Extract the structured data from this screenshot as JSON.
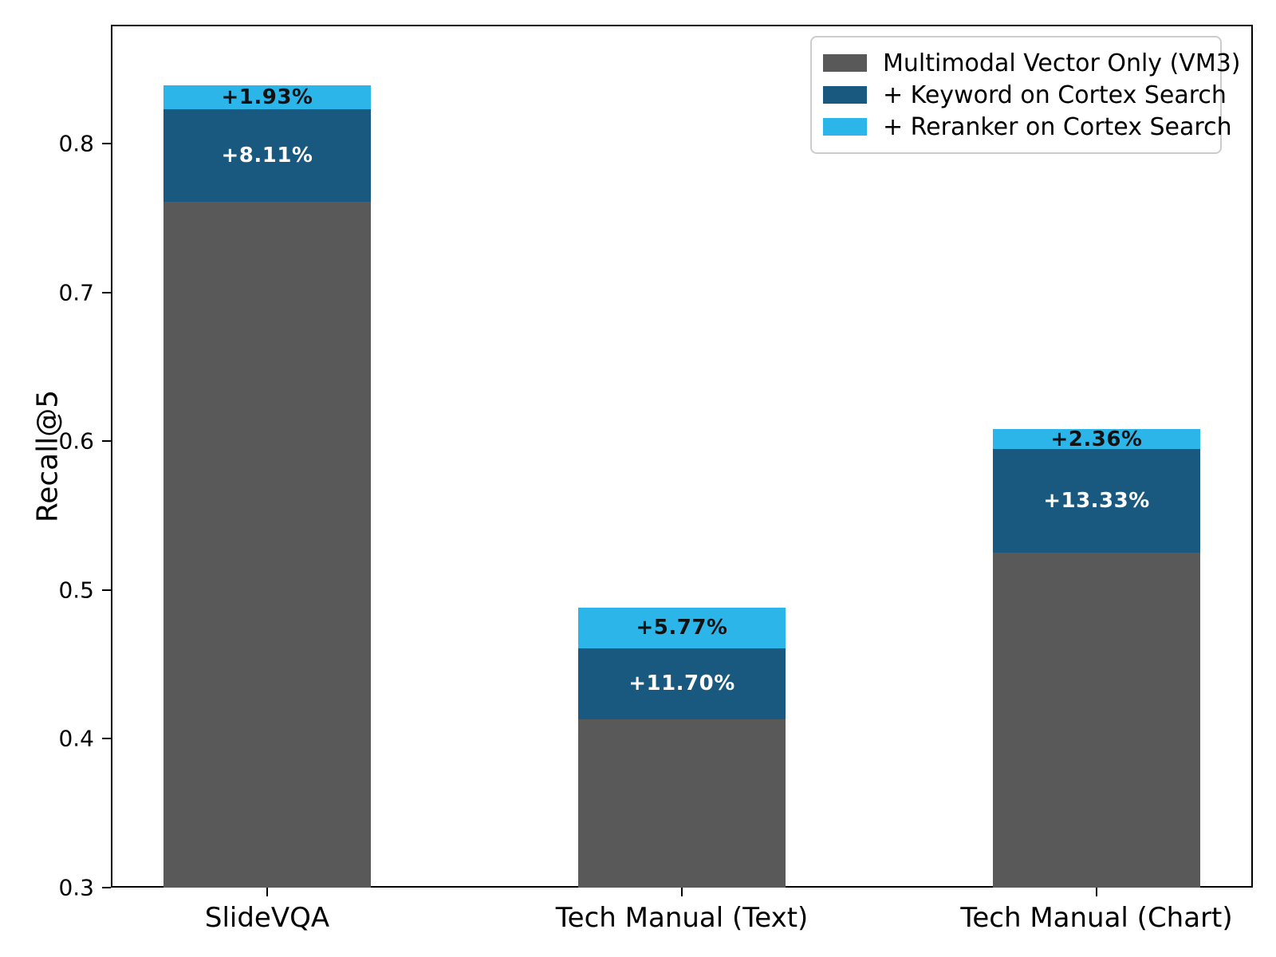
{
  "figure": {
    "background_color": "#ffffff",
    "axes_border_color": "#000000"
  },
  "chart_data": {
    "type": "bar",
    "stacked": true,
    "title": "",
    "xlabel": "",
    "ylabel": "Recall@5",
    "ylim": [
      0.3,
      0.88
    ],
    "yticks": [
      0.3,
      0.4,
      0.5,
      0.6,
      0.7,
      0.8
    ],
    "grid": false,
    "categories": [
      "SlideVQA",
      "Tech Manual (Text)",
      "Tech Manual (Chart)"
    ],
    "values_note": "tops are cumulative stack heights in Recall@5 units, read from axis",
    "series": [
      {
        "name": "Multimodal Vector Only (VM3)",
        "color": "#595959",
        "cumulative_tops": [
          0.761,
          0.413,
          0.525
        ],
        "labels": [
          "",
          "",
          ""
        ],
        "label_color": "#000000"
      },
      {
        "name": "+ Keyword on Cortex Search",
        "color": "#19587f",
        "cumulative_tops": [
          0.823,
          0.461,
          0.595
        ],
        "labels": [
          "+8.11%",
          "+11.70%",
          "+13.33%"
        ],
        "label_color": "#ffffff"
      },
      {
        "name": "+ Reranker on Cortex Search",
        "color": "#2cb5e8",
        "cumulative_tops": [
          0.839,
          0.488,
          0.608
        ],
        "labels": [
          "+1.93%",
          "+5.77%",
          "+2.36%"
        ],
        "label_color": "#111111"
      }
    ],
    "legend": {
      "position": "upper right",
      "border_color": "#cccccc",
      "background": "#ffffff"
    }
  }
}
